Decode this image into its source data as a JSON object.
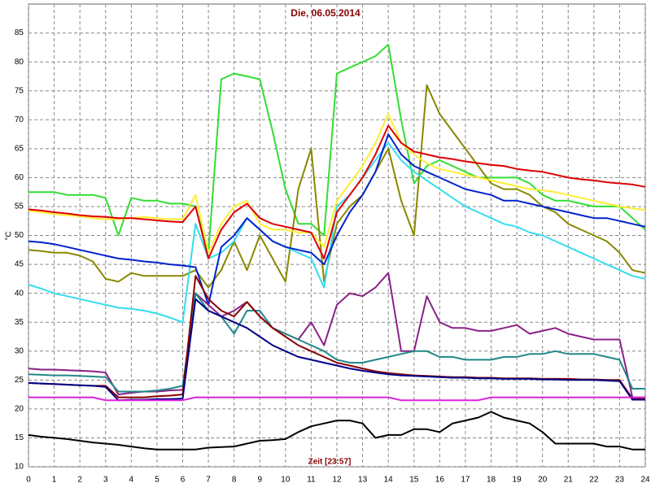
{
  "chart_data": {
    "type": "line",
    "title": "Die, 06.05.2014",
    "x_label": "Zeit [23:57]",
    "y_label": "°C",
    "xlim": [
      0,
      24
    ],
    "ylim": [
      10,
      90
    ],
    "xticks": [
      0,
      1,
      2,
      3,
      4,
      5,
      6,
      7,
      8,
      9,
      10,
      11,
      12,
      13,
      14,
      15,
      16,
      17,
      18,
      19,
      20,
      21,
      22,
      23,
      24
    ],
    "yticks": [
      10,
      15,
      20,
      25,
      30,
      35,
      40,
      45,
      50,
      55,
      60,
      65,
      70,
      75,
      80,
      85
    ],
    "grid": true,
    "x": [
      0,
      0.5,
      1,
      1.5,
      2,
      2.5,
      3,
      3.5,
      4,
      4.5,
      5,
      5.5,
      6,
      6.5,
      7,
      7.5,
      8,
      8.5,
      9,
      9.5,
      10,
      10.5,
      11,
      11.5,
      12,
      12.5,
      13,
      13.5,
      14,
      14.5,
      15,
      15.5,
      16,
      16.5,
      17,
      17.5,
      18,
      18.5,
      19,
      19.5,
      20,
      20.5,
      21,
      21.5,
      22,
      22.5,
      23,
      23.5,
      24
    ],
    "series": [
      {
        "color": "#33dd33",
        "values": [
          57.5,
          57.5,
          57.5,
          57,
          57,
          57,
          56.5,
          50,
          56.5,
          56,
          56,
          55.5,
          55.5,
          55,
          47,
          77,
          78,
          77.5,
          77,
          68,
          58,
          52,
          52,
          50,
          78,
          79,
          80,
          81,
          83,
          70,
          59,
          62,
          63,
          62,
          61,
          60,
          60,
          60,
          60,
          59,
          57,
          56,
          56,
          55.5,
          55,
          55,
          55,
          53,
          51
        ]
      },
      {
        "color": "#888800",
        "values": [
          47.5,
          47.3,
          47,
          47,
          46.5,
          45.5,
          42.5,
          42,
          43.5,
          43,
          43,
          43,
          43,
          44,
          41,
          44,
          49,
          44,
          50,
          46,
          42,
          58,
          65,
          42,
          52,
          55,
          57,
          61,
          65,
          56,
          50,
          76,
          71,
          68,
          65,
          62,
          59,
          58,
          58,
          57,
          55,
          54,
          52,
          51,
          50,
          49,
          47,
          44,
          43.5
        ]
      },
      {
        "color": "#33ddee",
        "values": [
          41.5,
          40.8,
          40,
          39.5,
          39,
          38.5,
          38,
          37.5,
          37.3,
          37,
          36.5,
          35.8,
          35,
          52,
          46,
          47,
          49,
          53,
          51,
          49,
          48,
          47,
          46,
          41,
          55,
          57,
          60,
          63,
          66,
          63,
          61,
          59.5,
          58,
          56.5,
          55,
          54,
          53,
          52,
          51.5,
          50.5,
          50,
          49,
          48,
          47,
          46,
          45,
          44,
          43,
          42.5
        ]
      },
      {
        "color": "#ffee33",
        "values": [
          54.3,
          54,
          53.7,
          53.5,
          53.3,
          53,
          52.8,
          52.8,
          53,
          53.2,
          53,
          52.8,
          52.8,
          57,
          47,
          52,
          55,
          56,
          52,
          51,
          51,
          50.5,
          50.5,
          48,
          56,
          59,
          62,
          66,
          71,
          66,
          64,
          62.5,
          61.5,
          61,
          60.5,
          60,
          59.5,
          59,
          58.5,
          58,
          57.8,
          57.5,
          57,
          56.5,
          56,
          55.5,
          55,
          54.7,
          54.4
        ]
      },
      {
        "color": "#0022cc",
        "values": [
          49,
          48.8,
          48.5,
          48,
          47.5,
          47,
          46.5,
          46,
          45.8,
          45.5,
          45.3,
          45,
          44.8,
          44.5,
          38,
          48,
          50,
          53,
          51,
          49,
          48,
          47.5,
          47,
          45,
          50,
          54,
          57,
          61,
          67.5,
          64,
          62,
          61,
          60,
          59,
          58,
          57.5,
          57,
          56,
          56,
          55.5,
          55,
          54.5,
          54,
          53.5,
          53,
          53,
          52.5,
          52,
          51.5
        ]
      },
      {
        "color": "#dd0000",
        "values": [
          54.5,
          54.3,
          54,
          53.8,
          53.5,
          53.3,
          53.2,
          53,
          53,
          52.8,
          52.6,
          52.4,
          52.3,
          55,
          46,
          51,
          54,
          55.5,
          53,
          52,
          51.5,
          51,
          50.5,
          46,
          54,
          57,
          60,
          64,
          69,
          66,
          64.5,
          64,
          63.5,
          63.2,
          62.8,
          62.5,
          62.2,
          62,
          61.5,
          61.2,
          61,
          60.5,
          60,
          59.7,
          59.5,
          59.2,
          59,
          58.8,
          58.4
        ]
      },
      {
        "color": "#882288",
        "values": [
          27,
          26.8,
          26.8,
          26.7,
          26.6,
          26.5,
          26.3,
          22.5,
          22.8,
          23,
          23,
          23.2,
          23.3,
          40,
          38,
          36,
          37,
          38.5,
          36,
          34,
          33,
          32,
          35,
          31,
          38,
          40,
          39.5,
          41,
          43.5,
          30,
          30,
          39.5,
          35,
          34,
          34,
          33.5,
          33.5,
          34,
          34.5,
          33,
          33.5,
          34,
          33,
          32.5,
          32,
          32,
          32,
          22,
          22
        ]
      },
      {
        "color": "#228888",
        "values": [
          26,
          25.9,
          25.8,
          25.8,
          25.7,
          25.6,
          25.5,
          23,
          23,
          23,
          23.2,
          23.5,
          24,
          40,
          37,
          36,
          33,
          37,
          37,
          34,
          33,
          32,
          31,
          30,
          28.5,
          28,
          28,
          28.5,
          29,
          29.5,
          30,
          30,
          29,
          29,
          28.5,
          28.5,
          28.5,
          29,
          29,
          29.5,
          29.5,
          30,
          29.5,
          29.5,
          29.5,
          29,
          28.5,
          23.5,
          23.5
        ]
      },
      {
        "color": "#880000",
        "values": [
          24.5,
          24.4,
          24.3,
          24.2,
          24.1,
          24,
          24,
          22,
          22,
          22,
          22.2,
          22.3,
          22.5,
          43,
          39,
          37,
          36,
          38.5,
          36,
          34,
          32.5,
          31,
          30,
          29,
          28,
          27.5,
          27,
          26.5,
          26.2,
          26,
          25.8,
          25.7,
          25.6,
          25.5,
          25.5,
          25.4,
          25.4,
          25.3,
          25.3,
          25.3,
          25.2,
          25.2,
          25.2,
          25.1,
          25.1,
          25,
          25,
          21.8,
          21.8
        ]
      },
      {
        "color": "#000088",
        "values": [
          24.5,
          24.4,
          24.3,
          24.2,
          24.1,
          24,
          23.8,
          21.5,
          21.6,
          21.6,
          21.7,
          21.7,
          21.8,
          39,
          37,
          36,
          35,
          34,
          32.5,
          31,
          30,
          29,
          28.5,
          28,
          27.5,
          27,
          26.6,
          26.3,
          26,
          25.8,
          25.7,
          25.6,
          25.5,
          25.4,
          25.4,
          25.3,
          25.3,
          25.2,
          25.2,
          25.2,
          25.1,
          25.1,
          25,
          25,
          25,
          24.9,
          24.8,
          21.6,
          21.6
        ]
      },
      {
        "color": "#dd22dd",
        "values": [
          22,
          22,
          22,
          22,
          22,
          22,
          21.5,
          21.5,
          21.5,
          21.5,
          21.5,
          21.5,
          21.5,
          22,
          22,
          22,
          22,
          22,
          22,
          22,
          22,
          22,
          22,
          22,
          22,
          22,
          22,
          22,
          22,
          21.5,
          21.5,
          21.5,
          21.5,
          21.5,
          21.5,
          21.5,
          22,
          22,
          22,
          22,
          22,
          22,
          22,
          22,
          22,
          22,
          22,
          22,
          22
        ]
      },
      {
        "color": "#000000",
        "values": [
          15.5,
          15.2,
          15,
          14.8,
          14.5,
          14.2,
          14,
          13.8,
          13.5,
          13.2,
          13,
          13,
          13,
          13,
          13.3,
          13.4,
          13.5,
          14,
          14.5,
          14.6,
          14.8,
          16,
          17,
          17.5,
          18,
          18,
          17.5,
          15,
          15.5,
          15.5,
          16.5,
          16.5,
          16,
          17.5,
          18,
          18.5,
          19.5,
          18.5,
          18,
          17.5,
          16,
          14,
          14,
          14,
          14,
          13.5,
          13.5,
          13,
          13
        ]
      }
    ]
  }
}
